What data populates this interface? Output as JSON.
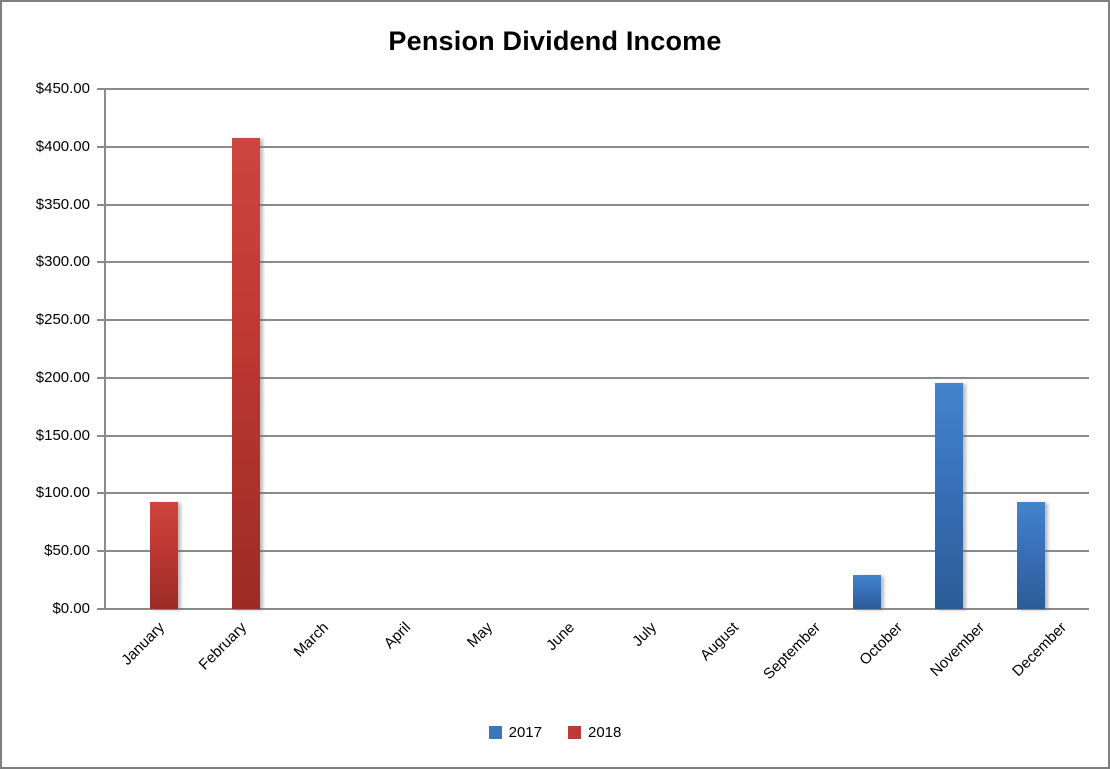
{
  "chart_data": {
    "type": "bar",
    "title": "Pension Dividend Income",
    "categories": [
      "January",
      "February",
      "March",
      "April",
      "May",
      "June",
      "July",
      "August",
      "September",
      "October",
      "November",
      "December"
    ],
    "series": [
      {
        "name": "2017",
        "color": "#3c76be",
        "values": [
          0,
          0,
          0,
          0,
          0,
          0,
          0,
          0,
          0,
          29,
          196,
          93
        ]
      },
      {
        "name": "2018",
        "color": "#be3a33",
        "values": [
          93,
          408,
          0,
          0,
          0,
          0,
          0,
          0,
          0,
          0,
          0,
          0
        ]
      }
    ],
    "ylim": [
      0,
      450
    ],
    "yticks": [
      0,
      50,
      100,
      150,
      200,
      250,
      300,
      350,
      400,
      450
    ],
    "ytick_labels": [
      "$0.00",
      "$50.00",
      "$100.00",
      "$150.00",
      "$200.00",
      "$250.00",
      "$300.00",
      "$350.00",
      "$400.00",
      "$450.00"
    ],
    "xlabel": "",
    "ylabel": "",
    "grid": true,
    "legend_position": "bottom"
  },
  "colors": {
    "gridline": "#8a8a8a",
    "frame_border": "#7f7f7f",
    "background": "#ffffff",
    "series_2017_blue": "#3c76be",
    "series_2018_red": "#be3a33"
  }
}
